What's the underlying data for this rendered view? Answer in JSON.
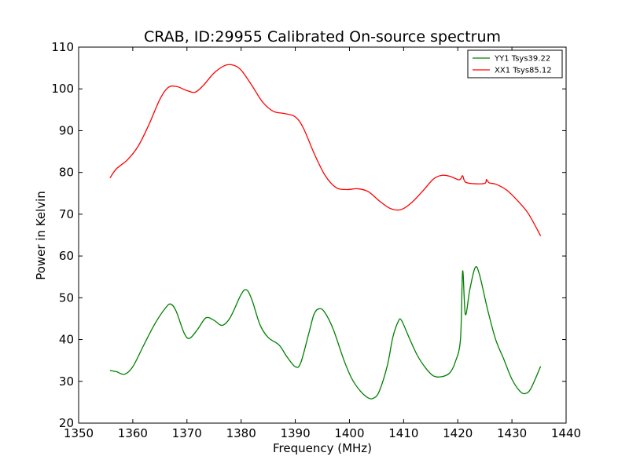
{
  "chart_data": {
    "type": "line",
    "title": "CRAB, ID:29955 Calibrated On-source spectrum",
    "xlabel": "Frequency (MHz)",
    "ylabel": "Power in Kelvin",
    "xlim": [
      1350,
      1440
    ],
    "ylim": [
      20,
      110
    ],
    "xticks": [
      "1350",
      "1360",
      "1370",
      "1380",
      "1390",
      "1400",
      "1410",
      "1420",
      "1430",
      "1440"
    ],
    "yticks": [
      "20",
      "30",
      "40",
      "50",
      "60",
      "70",
      "80",
      "90",
      "100",
      "110"
    ],
    "grid": false,
    "legend_position": "top-right",
    "series": [
      {
        "name": "YY1 Tsys39.22",
        "color": "#008000",
        "points": [
          [
            1355.8,
            32.6
          ],
          [
            1357.0,
            32.3
          ],
          [
            1358.5,
            31.7
          ],
          [
            1360.0,
            33.5
          ],
          [
            1362.0,
            38.6
          ],
          [
            1364.0,
            43.6
          ],
          [
            1366.0,
            47.5
          ],
          [
            1367.0,
            48.5
          ],
          [
            1368.0,
            46.8
          ],
          [
            1369.5,
            41.5
          ],
          [
            1370.5,
            40.3
          ],
          [
            1372.0,
            42.5
          ],
          [
            1373.5,
            45.2
          ],
          [
            1375.0,
            44.6
          ],
          [
            1376.5,
            43.4
          ],
          [
            1378.0,
            45.3
          ],
          [
            1380.0,
            50.8
          ],
          [
            1381.0,
            51.9
          ],
          [
            1382.0,
            49.5
          ],
          [
            1383.5,
            43.5
          ],
          [
            1385.0,
            40.5
          ],
          [
            1387.0,
            38.7
          ],
          [
            1388.5,
            35.8
          ],
          [
            1390.0,
            33.5
          ],
          [
            1391.0,
            34.4
          ],
          [
            1392.5,
            41.5
          ],
          [
            1393.5,
            46.2
          ],
          [
            1394.5,
            47.4
          ],
          [
            1395.5,
            46.4
          ],
          [
            1397.0,
            42.5
          ],
          [
            1399.0,
            35.0
          ],
          [
            1400.5,
            30.5
          ],
          [
            1402.0,
            27.7
          ],
          [
            1403.5,
            26.0
          ],
          [
            1404.5,
            26.0
          ],
          [
            1405.5,
            27.6
          ],
          [
            1407.0,
            33.8
          ],
          [
            1408.0,
            40.5
          ],
          [
            1409.0,
            44.3
          ],
          [
            1409.6,
            44.6
          ],
          [
            1411.0,
            40.5
          ],
          [
            1412.5,
            36.3
          ],
          [
            1414.0,
            33.3
          ],
          [
            1415.5,
            31.3
          ],
          [
            1417.0,
            31.1
          ],
          [
            1418.5,
            32.0
          ],
          [
            1419.5,
            34.5
          ],
          [
            1420.5,
            40.1
          ],
          [
            1420.9,
            56.4
          ],
          [
            1421.4,
            46.0
          ],
          [
            1422.2,
            51.8
          ],
          [
            1423.2,
            57.2
          ],
          [
            1424.0,
            55.6
          ],
          [
            1425.5,
            47.2
          ],
          [
            1427.0,
            40.0
          ],
          [
            1428.5,
            35.3
          ],
          [
            1430.0,
            30.5
          ],
          [
            1431.5,
            27.6
          ],
          [
            1432.5,
            27.1
          ],
          [
            1433.5,
            28.3
          ],
          [
            1435.3,
            33.6
          ]
        ]
      },
      {
        "name": "XX1 Tsys85.12",
        "color": "#ff0000",
        "points": [
          [
            1355.8,
            78.7
          ],
          [
            1357.0,
            80.9
          ],
          [
            1359.0,
            83.0
          ],
          [
            1361.0,
            86.3
          ],
          [
            1363.0,
            91.5
          ],
          [
            1365.0,
            97.5
          ],
          [
            1366.5,
            100.3
          ],
          [
            1368.0,
            100.6
          ],
          [
            1370.0,
            99.6
          ],
          [
            1371.5,
            99.2
          ],
          [
            1373.0,
            100.8
          ],
          [
            1375.0,
            103.8
          ],
          [
            1377.0,
            105.6
          ],
          [
            1378.5,
            105.7
          ],
          [
            1380.0,
            104.5
          ],
          [
            1382.0,
            100.8
          ],
          [
            1384.0,
            96.8
          ],
          [
            1386.0,
            94.6
          ],
          [
            1388.0,
            94.1
          ],
          [
            1390.0,
            93.3
          ],
          [
            1391.5,
            90.6
          ],
          [
            1393.5,
            84.5
          ],
          [
            1395.5,
            79.3
          ],
          [
            1397.5,
            76.4
          ],
          [
            1399.5,
            75.9
          ],
          [
            1401.5,
            76.1
          ],
          [
            1403.5,
            75.4
          ],
          [
            1405.5,
            73.2
          ],
          [
            1407.5,
            71.4
          ],
          [
            1409.5,
            71.1
          ],
          [
            1411.5,
            72.8
          ],
          [
            1413.5,
            75.5
          ],
          [
            1415.5,
            78.4
          ],
          [
            1417.0,
            79.3
          ],
          [
            1418.5,
            79.1
          ],
          [
            1420.0,
            78.3
          ],
          [
            1420.5,
            78.4
          ],
          [
            1420.9,
            79.2
          ],
          [
            1421.4,
            77.7
          ],
          [
            1423.0,
            77.3
          ],
          [
            1425.0,
            77.4
          ],
          [
            1425.3,
            78.3
          ],
          [
            1425.8,
            77.5
          ],
          [
            1427.0,
            77.2
          ],
          [
            1429.0,
            75.8
          ],
          [
            1431.0,
            73.3
          ],
          [
            1433.0,
            70.2
          ],
          [
            1435.3,
            64.8
          ]
        ]
      }
    ]
  }
}
